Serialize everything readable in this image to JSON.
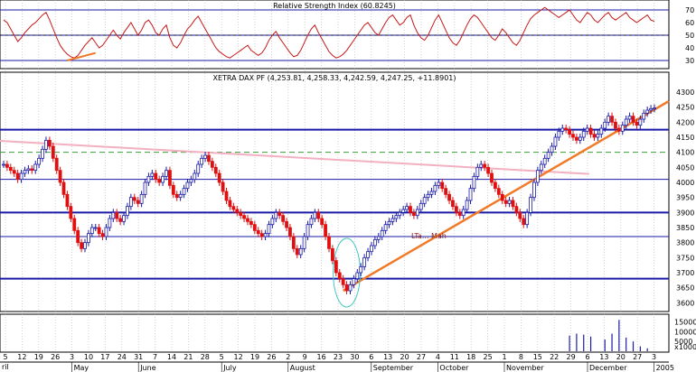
{
  "rsi_panel": {
    "title": "Relative Strength Index (60.8245)",
    "ticks": [
      "70",
      "60",
      "50",
      "40",
      "30"
    ],
    "levels": [
      70,
      50,
      30
    ]
  },
  "price_panel": {
    "title": "XETRA DAX PF (4,253.81, 4,258.33, 4,242.59, 4,247.25, +11.8901)",
    "ticks": [
      "4300",
      "4250",
      "4200",
      "4150",
      "4100",
      "4050",
      "4000",
      "3950",
      "3900",
      "3850",
      "3800",
      "3750",
      "3700",
      "3650",
      "3600"
    ],
    "annotation": "LTa... Mah"
  },
  "volume_panel": {
    "ticks": [
      "15000",
      "10000",
      "5000",
      "x1000"
    ]
  },
  "time_axis": {
    "day_labels": [
      "5",
      "12",
      "19",
      "26",
      "3",
      "10",
      "17",
      "24",
      "31",
      "7",
      "14",
      "21",
      "28",
      "5",
      "12",
      "19",
      "26",
      "2",
      "9",
      "16",
      "23",
      "30",
      "6",
      "13",
      "20",
      "27",
      "4",
      "11",
      "18",
      "25",
      "1",
      "8",
      "15",
      "22",
      "29",
      "6",
      "13",
      "20",
      "27",
      "3"
    ],
    "month_labels": [
      "May",
      "June",
      "July",
      "August",
      "September",
      "October",
      "November",
      "December",
      "2005"
    ],
    "start_label": "ril"
  },
  "colors": {
    "up": "#1a1aa8",
    "down": "#e01010",
    "support": "#1a1aa8",
    "trendline": "#f07a28",
    "pink_line": "#f2b0c0",
    "dashed_green": "#3a9a3a",
    "rsi_line": "#c81818",
    "ellipse": "#40c8c0"
  },
  "chart_data": {
    "type": "candlestick",
    "title": "XETRA DAX PF (4,253.81, 4,258.33, 4,242.59, 4,247.25, +11.8901)",
    "ohlc_last": {
      "open": 4253.81,
      "high": 4258.33,
      "low": 4242.59,
      "close": 4247.25,
      "change": 11.8901
    },
    "ylim": [
      3580,
      4330
    ],
    "horizontal_levels": [
      4175,
      4010,
      3900,
      3820,
      3680
    ],
    "dashed_level": 4100,
    "close_series": [
      4060,
      4050,
      4040,
      4030,
      4010,
      4030,
      4040,
      4045,
      4040,
      4060,
      4080,
      4110,
      4140,
      4120,
      4080,
      4040,
      4000,
      3960,
      3920,
      3880,
      3840,
      3800,
      3780,
      3800,
      3830,
      3850,
      3850,
      3830,
      3820,
      3850,
      3880,
      3900,
      3880,
      3870,
      3890,
      3920,
      3950,
      3940,
      3930,
      3960,
      4000,
      4020,
      4030,
      4010,
      4000,
      4020,
      4040,
      3990,
      3960,
      3950,
      3960,
      3980,
      4000,
      4010,
      4030,
      4060,
      4080,
      4090,
      4070,
      4050,
      4030,
      4000,
      3970,
      3940,
      3920,
      3910,
      3900,
      3890,
      3880,
      3870,
      3860,
      3840,
      3830,
      3820,
      3830,
      3860,
      3880,
      3900,
      3890,
      3870,
      3850,
      3820,
      3780,
      3760,
      3780,
      3820,
      3860,
      3880,
      3900,
      3880,
      3860,
      3820,
      3780,
      3740,
      3700,
      3680,
      3660,
      3640,
      3660,
      3680,
      3700,
      3720,
      3750,
      3770,
      3790,
      3810,
      3820,
      3840,
      3860,
      3870,
      3880,
      3890,
      3900,
      3910,
      3920,
      3900,
      3890,
      3910,
      3930,
      3950,
      3960,
      3970,
      3990,
      4000,
      3980,
      3960,
      3940,
      3920,
      3900,
      3890,
      3910,
      3940,
      3980,
      4020,
      4050,
      4060,
      4050,
      4030,
      4000,
      3980,
      3960,
      3940,
      3930,
      3940,
      3920,
      3900,
      3880,
      3860,
      3900,
      3950,
      4000,
      4040,
      4060,
      4080,
      4100,
      4120,
      4150,
      4170,
      4180,
      4175,
      4160,
      4150,
      4140,
      4150,
      4170,
      4180,
      4160,
      4150,
      4160,
      4180,
      4200,
      4220,
      4200,
      4180,
      4170,
      4190,
      4210,
      4220,
      4200,
      4190,
      4210,
      4230,
      4240,
      4245,
      4247
    ],
    "rsi_series": [
      62,
      60,
      55,
      50,
      45,
      48,
      52,
      55,
      58,
      60,
      63,
      66,
      68,
      62,
      55,
      48,
      42,
      38,
      35,
      33,
      32,
      34,
      38,
      42,
      45,
      48,
      44,
      40,
      42,
      46,
      50,
      54,
      50,
      47,
      52,
      56,
      60,
      55,
      50,
      54,
      60,
      62,
      58,
      52,
      50,
      55,
      58,
      48,
      42,
      40,
      44,
      50,
      55,
      58,
      62,
      65,
      60,
      55,
      50,
      45,
      40,
      37,
      35,
      33,
      32,
      34,
      36,
      38,
      40,
      42,
      38,
      36,
      34,
      36,
      40,
      46,
      50,
      53,
      48,
      44,
      40,
      36,
      33,
      34,
      38,
      44,
      50,
      55,
      58,
      52,
      47,
      42,
      37,
      34,
      32,
      33,
      35,
      38,
      42,
      46,
      50,
      54,
      58,
      60,
      56,
      52,
      50,
      55,
      60,
      64,
      66,
      62,
      58,
      60,
      64,
      66,
      58,
      52,
      48,
      46,
      50,
      56,
      62,
      66,
      60,
      54,
      48,
      44,
      42,
      46,
      52,
      58,
      63,
      66,
      64,
      60,
      56,
      52,
      48,
      46,
      50,
      55,
      52,
      48,
      44,
      42,
      46,
      52,
      58,
      63,
      66,
      68,
      70,
      72,
      70,
      68,
      66,
      64,
      66,
      68,
      70,
      66,
      62,
      60,
      64,
      68,
      66,
      62,
      60,
      63,
      66,
      68,
      64,
      62,
      64,
      66,
      68,
      64,
      62,
      60,
      62,
      64,
      66,
      62,
      61
    ],
    "rsi_ylim": [
      25,
      75
    ],
    "volume_ylim": [
      0,
      18000
    ],
    "volume_bars": [
      {
        "index": 160,
        "value": 8000
      },
      {
        "index": 162,
        "value": 9000
      },
      {
        "index": 164,
        "value": 8500
      },
      {
        "index": 166,
        "value": 7500
      },
      {
        "index": 170,
        "value": 6000
      },
      {
        "index": 172,
        "value": 9000
      },
      {
        "index": 174,
        "value": 16000
      },
      {
        "index": 176,
        "value": 7000
      },
      {
        "index": 178,
        "value": 5000
      },
      {
        "index": 180,
        "value": 2500
      },
      {
        "index": 182,
        "value": 1500
      }
    ]
  }
}
